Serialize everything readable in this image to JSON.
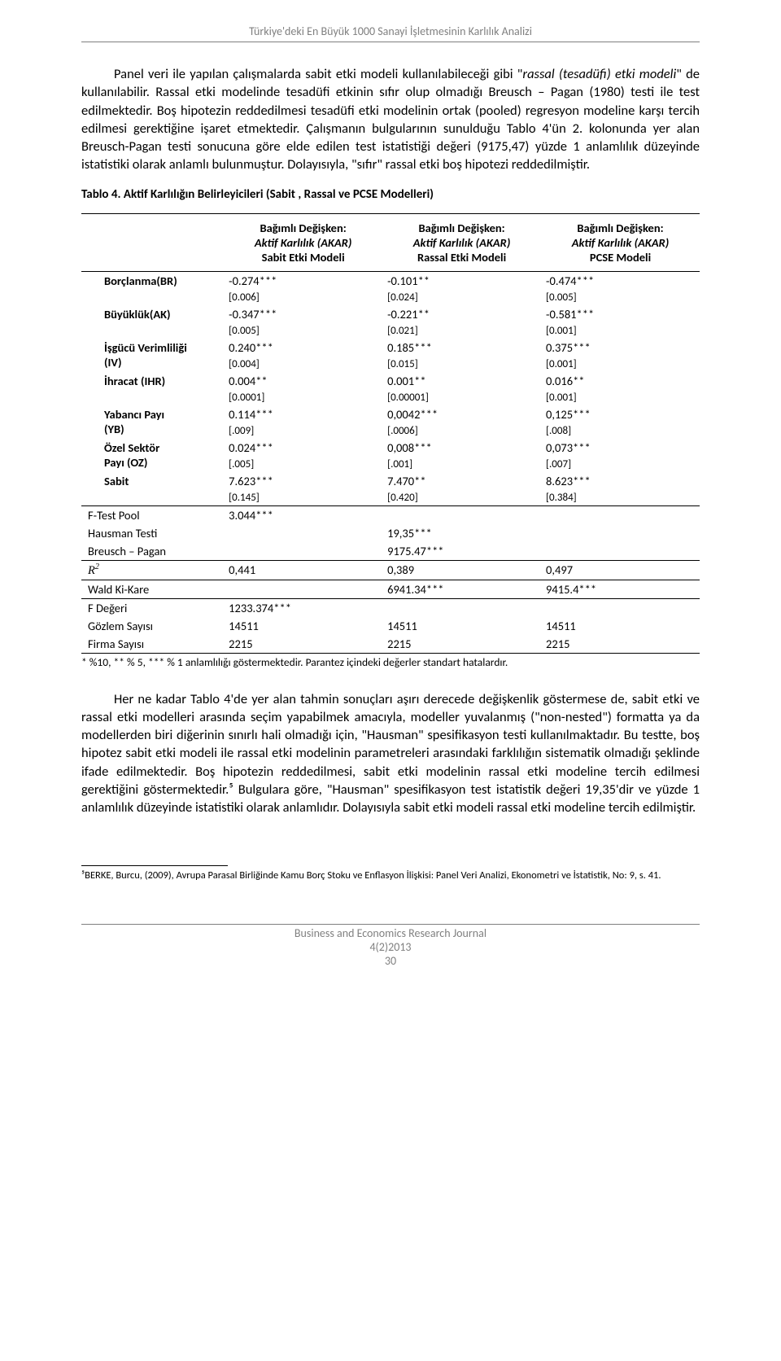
{
  "running_head": "Türkiye'deki En Büyük 1000 Sanayi İşletmesinin Karlılık Analizi",
  "para1_parts": {
    "a": "Panel veri ile yapılan çalışmalarda sabit etki modeli kullanılabileceği gibi \"",
    "b": "rassal (tesadüfi) etki modeli",
    "c": "\" de kullanılabilir. Rassal etki modelinde tesadüfi etkinin sıfır olup olmadığı Breusch – Pagan  (1980) testi ile test edilmektedir. Boş hipotezin reddedilmesi tesadüfi etki modelinin ortak (pooled) regresyon  modeline karşı tercih edilmesi gerektiğine işaret etmektedir. Çalışmanın bulgularının sunulduğu Tablo 4'ün 2. kolonunda yer alan Breusch-Pagan testi sonucuna göre elde edilen test istatistiği değeri (9175,47) yüzde 1 anlamlılık düzeyinde istatistiki olarak anlamlı bulunmuştur. Dolayısıyla, \"sıfır\" rassal etki boş hipotezi reddedilmiştir."
  },
  "table_caption": "Tablo 4. Aktif Karlılığın Belirleyicileri (Sabit , Rassal ve PCSE Modelleri)",
  "header": {
    "dep_label": "Bağımlı Değişken:",
    "dep_var": "Aktif Karlılık (AKAR)",
    "m1": "Sabit Etki Modeli",
    "m2": "Rassal Etki Modeli",
    "m3": "PCSE Modeli"
  },
  "rows": [
    {
      "label": "Borçlanma(BR)",
      "c1": "-0.274***",
      "s1": "[0.006]",
      "c2": "-0.101**",
      "s2": "[0.024]",
      "c3": "-0.474***",
      "s3": "[0.005]"
    },
    {
      "label": "Büyüklük(AK)",
      "c1": "-0.347***",
      "s1": "[0.005]",
      "c2": "-0.221**",
      "s2": "[0.021]",
      "c3": "-0.581***",
      "s3": "[0.001]"
    },
    {
      "label": "İşgücü Verimliliği",
      "label2": "(IV)",
      "c1": "0.240***",
      "s1": "[0.004]",
      "c2": "0.185***",
      "s2": "[0.015]",
      "c3": "0.375***",
      "s3": "[0.001]"
    },
    {
      "label": "İhracat (IHR)",
      "c1": "0.004**",
      "s1": "[0.0001]",
      "c2": "0.001**",
      "s2": "[0.00001]",
      "c3": "0.016**",
      "s3": "[0.001]"
    },
    {
      "label": "Yabancı Payı",
      "label2": "(YB)",
      "c1": "0.114***",
      "s1": "[.009]",
      "c2": "0,0042***",
      "s2": "[.0006]",
      "c3": "0,125***",
      "s3": "[.008]"
    },
    {
      "label": "Özel Sektör",
      "label2": "Payı (OZ)",
      "c1": "0.024***",
      "s1": "[.005]",
      "c2": "0,008***",
      "s2": "[.001]",
      "c3": "0,073***",
      "s3": "[.007]"
    },
    {
      "label": "Sabit",
      "c1": "7.623***",
      "s1": "[0.145]",
      "c2": "7.470**",
      "s2": "[0.420]",
      "c3": "8.623***",
      "s3": "[0.384]"
    }
  ],
  "diag": {
    "ftest_label": "F-Test Pool",
    "ftest": "3.044***",
    "hausman_label": "Hausman Testi",
    "hausman": "19,35***",
    "bp_label": "Breusch – Pagan",
    "bp": "9175.47***",
    "r2_c1": "0,441",
    "r2_c2": "0,389",
    "r2_c3": "0,497",
    "wald_label": "Wald Ki-Kare",
    "wald_c2": "6941.34***",
    "wald_c3": "9415.4***",
    "fdeg_label": "F Değeri",
    "fdeg": "1233.374***",
    "gozlem_label": "Gözlem Sayısı",
    "gozlem_c1": "14511",
    "gozlem_c2": "14511",
    "gozlem_c3": "14511",
    "firma_label": "Firma Sayısı",
    "firma_c1": "2215",
    "firma_c2": "2215",
    "firma_c3": "2215"
  },
  "table_note": "* %10, ** % 5, *** % 1 anlamlılığı göstermektedir. Parantez içindeki değerler standart hatalardır.",
  "para2": "Her ne kadar Tablo 4'de yer alan tahmin sonuçları aşırı derecede değişkenlik göstermese de, sabit etki ve rassal etki modelleri arasında seçim yapabilmek amacıyla, modeller yuvalanmış (\"non-nested\") formatta ya da modellerden biri diğerinin sınırlı hali olmadığı için, \"Hausman\" spesifikasyon testi kullanılmaktadır. Bu testte, boş hipotez sabit etki modeli ile rassal etki modelinin parametreleri arasındaki farklılığın sistematik olmadığı şeklinde ifade edilmektedir. Boş hipotezin reddedilmesi, sabit etki modelinin rassal etki modeline tercih edilmesi gerektiğini göstermektedir.⁵ Bulgulara göre, \"Hausman\" spesifikasyon test istatistik değeri 19,35'dir ve yüzde 1 anlamlılık düzeyinde istatistiki olarak anlamlıdır. Dolayısıyla sabit etki modeli rassal etki modeline tercih edilmiştir.",
  "footnote": "⁵BERKE, Burcu, (2009), Avrupa Parasal Birliğinde Kamu Borç Stoku ve Enflasyon İlişkisi: Panel Veri Analizi, Ekonometri ve İstatistik, No: 9, s. 41.",
  "footer_journal": "Business and Economics Research Journal",
  "footer_issue": "4(2)2013",
  "footer_page": "30"
}
